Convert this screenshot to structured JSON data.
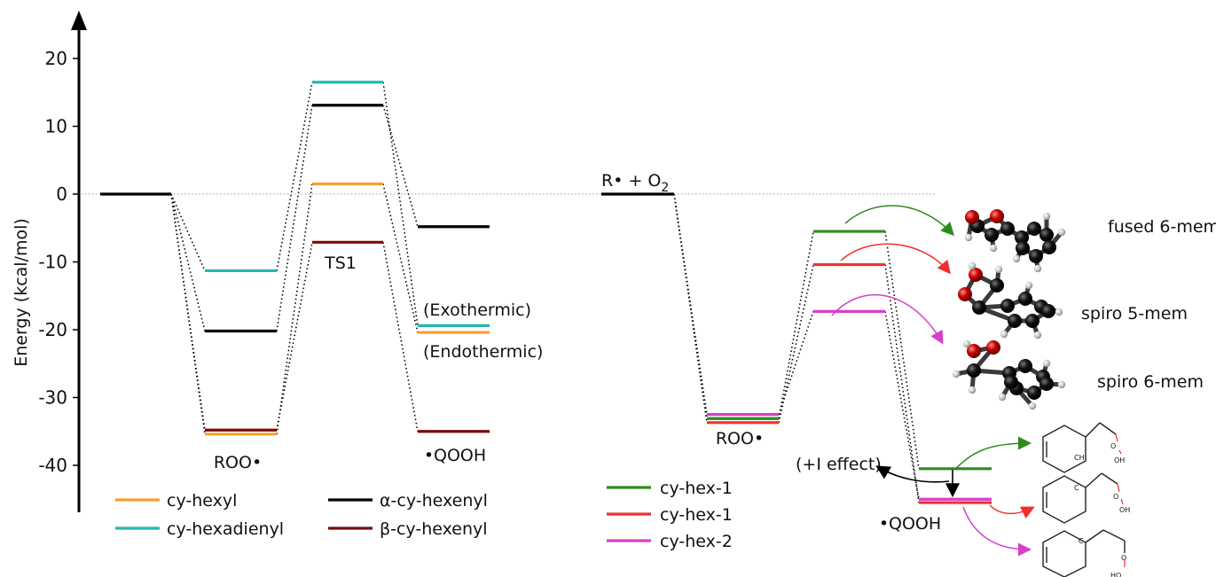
{
  "colors": {
    "cy_hexyl": "#f5a030",
    "cy_hexadienyl": "#26b5b5",
    "alpha_cy_hexenyl": "#000000",
    "beta_cy_hexenyl": "#7a0a0a",
    "cy_hex_1_green": "#2e8b1e",
    "cy_hex_1_red": "#f03030",
    "cy_hex_2": "#d640c8"
  },
  "axis": {
    "ylabel": "Energy (kcal/mol)",
    "ticks": [
      "20",
      "10",
      "0",
      "-10",
      "-20",
      "-30",
      "-40"
    ]
  },
  "labels": {
    "roo_left": "ROO•",
    "ts1": "TS1",
    "qooh_left": "•QOOH",
    "exothermic": "(Exothermic)",
    "endothermic": "(Endothermic)",
    "reactants_prefix": "R• + O",
    "reactants_sub": "2",
    "roo_right": "ROO•",
    "qooh_right": "•QOOH",
    "i_effect": "(+I effect)"
  },
  "legend_left": [
    {
      "label": "cy-hexyl",
      "color": "#f5a030"
    },
    {
      "label": "cy-hexadienyl",
      "color": "#26b5b5"
    },
    {
      "label": "α-cy-hexenyl",
      "color": "#000000"
    },
    {
      "label": "β-cy-hexenyl",
      "color": "#7a0a0a"
    }
  ],
  "legend_right": [
    {
      "label": "cy-hex-1",
      "color": "#2e8b1e"
    },
    {
      "label": "cy-hex-1",
      "color": "#f03030"
    },
    {
      "label": "cy-hex-2",
      "color": "#d640c8"
    }
  ],
  "molecules": {
    "fused": "fused 6-mem",
    "spiro5": "spiro 5-mem",
    "spiro6": "spiro 6-mem"
  },
  "structure_atoms": {
    "radical_ch": "CH",
    "radical_c": "C",
    "oxygen": "O",
    "hydroxyl": "OH",
    "hydroxyl_rev": "HO"
  },
  "chart_data": {
    "type": "energy-level diagram",
    "ylabel": "Energy (kcal/mol)",
    "ylim": [
      -46,
      27
    ],
    "reference_level": 0,
    "panels": [
      {
        "name": "left",
        "stages": [
          "reactant",
          "ROO•",
          "TS1",
          "•QOOH"
        ],
        "series": [
          {
            "name": "cy-hexyl",
            "values": [
              0,
              -35.4,
              1.5,
              -20.4
            ]
          },
          {
            "name": "cy-hexadienyl",
            "values": [
              0,
              -11.3,
              16.5,
              -19.4
            ]
          },
          {
            "name": "α-cy-hexenyl",
            "values": [
              0,
              -20.2,
              13.1,
              -4.8
            ]
          },
          {
            "name": "β-cy-hexenyl",
            "values": [
              0,
              -34.8,
              -7.1,
              -35.0
            ]
          }
        ]
      },
      {
        "name": "right",
        "stages": [
          "R• + O2",
          "ROO•",
          "TS",
          "•QOOH"
        ],
        "series": [
          {
            "name": "cy-hex-1",
            "color": "#2e8b1e",
            "values": [
              0,
              -33.1,
              -5.5,
              -40.5
            ]
          },
          {
            "name": "cy-hex-1",
            "color": "#f03030",
            "values": [
              0,
              -33.7,
              -10.4,
              -45.5
            ]
          },
          {
            "name": "cy-hex-2",
            "color": "#d640c8",
            "values": [
              0,
              -32.5,
              -17.3,
              -45.0
            ]
          }
        ]
      }
    ]
  }
}
